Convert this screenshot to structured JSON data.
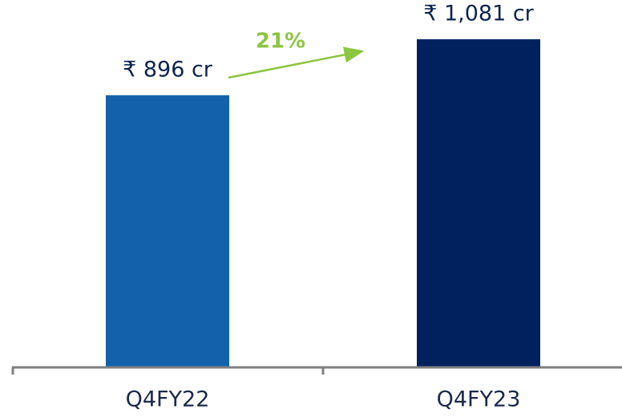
{
  "chart_data": {
    "type": "bar",
    "categories": [
      "Q4FY22",
      "Q4FY23"
    ],
    "values": [
      896,
      1081
    ],
    "value_labels": [
      "₹ 896 cr",
      "₹ 1,081 cr"
    ],
    "colors": [
      "#1461ab",
      "#00215d"
    ],
    "annotation": "21%"
  }
}
